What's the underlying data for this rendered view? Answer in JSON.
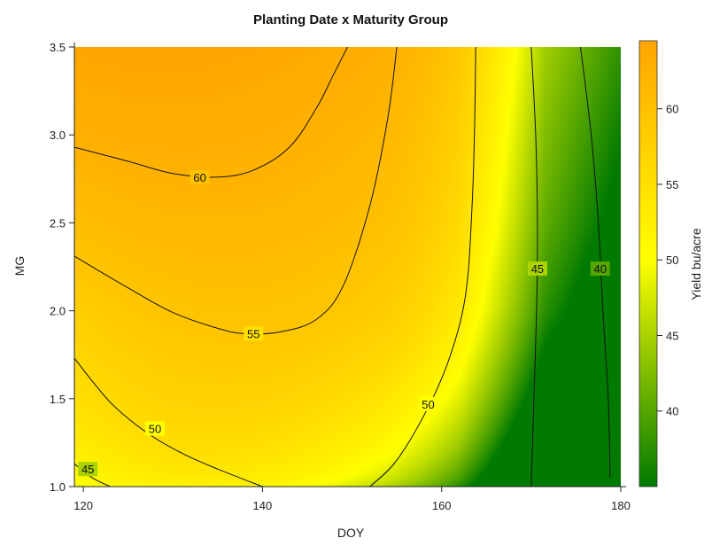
{
  "chart_data": {
    "type": "contour",
    "title": "Planting Date x Maturity Group",
    "xlabel": "DOY",
    "ylabel": "MG",
    "colorbar_label": "Yield bu/acre",
    "xlim": [
      119,
      180
    ],
    "ylim": [
      1.0,
      3.5
    ],
    "x_ticks": [
      120,
      140,
      160,
      180
    ],
    "x_tick_labels": [
      "120",
      "140",
      "160",
      "180"
    ],
    "y_ticks": [
      1.0,
      1.5,
      2.0,
      2.5,
      3.0,
      3.5
    ],
    "y_tick_labels": [
      "1.0",
      "1.5",
      "2.0",
      "2.5",
      "3.0",
      "3.5"
    ],
    "colorbar_range": [
      35,
      64.5
    ],
    "colorbar_ticks": [
      40,
      45,
      50,
      55,
      60
    ],
    "colorbar_tick_labels": [
      "40",
      "45",
      "50",
      "55",
      "60"
    ],
    "colormap": [
      {
        "value": 35,
        "color": "#007a00"
      },
      {
        "value": 50,
        "color": "#ffff00"
      },
      {
        "value": 64.5,
        "color": "#ffa500"
      }
    ],
    "contours": [
      {
        "level": 60,
        "label": "60",
        "points": [
          [
            119,
            2.93
          ],
          [
            125,
            2.85
          ],
          [
            130,
            2.78
          ],
          [
            135,
            2.76
          ],
          [
            139,
            2.8
          ],
          [
            143,
            2.93
          ],
          [
            146,
            3.15
          ],
          [
            148,
            3.35
          ],
          [
            149.5,
            3.5
          ]
        ],
        "label_at": [
          133,
          2.76
        ]
      },
      {
        "level": 55,
        "label": "55",
        "points": [
          [
            119,
            2.31
          ],
          [
            125,
            2.13
          ],
          [
            130,
            1.99
          ],
          [
            135,
            1.9
          ],
          [
            138,
            1.87
          ],
          [
            142,
            1.88
          ],
          [
            146,
            1.95
          ],
          [
            149,
            2.14
          ],
          [
            152,
            2.6
          ],
          [
            154,
            3.1
          ],
          [
            155,
            3.5
          ]
        ],
        "label_at": [
          139,
          1.87
        ]
      },
      {
        "level": 50,
        "label": "50",
        "points": [
          [
            119,
            1.73
          ],
          [
            123,
            1.48
          ],
          [
            127,
            1.31
          ],
          [
            131,
            1.19
          ],
          [
            135,
            1.1
          ],
          [
            140,
            1.0
          ]
        ],
        "label_at": [
          128,
          1.33
        ]
      },
      {
        "level": 50,
        "label": "50",
        "points": [
          [
            152,
            1.0
          ],
          [
            155,
            1.15
          ],
          [
            158.5,
            1.45
          ],
          [
            161,
            1.75
          ],
          [
            162.7,
            2.1
          ],
          [
            163.4,
            2.6
          ],
          [
            163.7,
            3.1
          ],
          [
            163.8,
            3.5
          ]
        ],
        "label_at": [
          158.5,
          1.47
        ]
      },
      {
        "level": 45,
        "label": "45",
        "points": [
          [
            119,
            1.13
          ],
          [
            121,
            1.05
          ],
          [
            123,
            1.0
          ]
        ],
        "label_at": [
          120.5,
          1.1
        ]
      },
      {
        "level": 45,
        "label": "45",
        "points": [
          [
            170,
            1.0
          ],
          [
            170.3,
            1.5
          ],
          [
            170.6,
            2.0
          ],
          [
            170.7,
            2.5
          ],
          [
            170.5,
            3.0
          ],
          [
            170.0,
            3.5
          ]
        ],
        "label_at": [
          170.7,
          2.24
        ]
      },
      {
        "level": 40,
        "label": "40",
        "points": [
          [
            178.8,
            1.05
          ],
          [
            178.6,
            1.5
          ],
          [
            178.0,
            2.0
          ],
          [
            177.5,
            2.5
          ],
          [
            176.7,
            3.0
          ],
          [
            175.5,
            3.5
          ]
        ],
        "label_at": [
          177.7,
          2.24
        ]
      }
    ]
  }
}
